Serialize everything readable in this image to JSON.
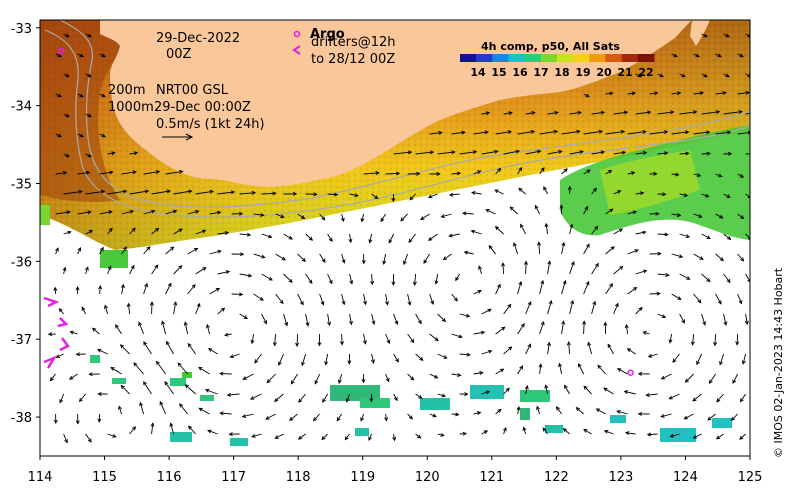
{
  "map": {
    "lon_range": [
      114,
      125
    ],
    "lat_range": [
      -38.5,
      -32.9
    ],
    "x_ticks": [
      "114",
      "115",
      "116",
      "117",
      "118",
      "119",
      "120",
      "121",
      "122",
      "123",
      "124",
      "125"
    ],
    "y_ticks": [
      "-33",
      "-34",
      "-35",
      "-36",
      "-37",
      "-38"
    ],
    "land_color": "#f9c79a",
    "arrow_color": "#000000",
    "argo_color": "#e020e0",
    "contour_color": "#aaaaaa"
  },
  "annotations": {
    "date": "29-Dec-2022",
    "time": "00Z",
    "depth_200": "200m",
    "depth_1000": "1000m",
    "product": "NRT00 GSL",
    "product_time": "29-Dec 00:00Z",
    "scale_label": "0.5m/s (1kt 24h)",
    "argo_title": "Argo",
    "drifters": "drifters@12h",
    "drifters_to": "to 28/12 00Z"
  },
  "colorbar": {
    "title": "4h comp, p50, All Sats",
    "ticks": [
      "14",
      "15",
      "16",
      "17",
      "18",
      "19",
      "20",
      "21",
      "22"
    ],
    "colors": [
      "#141489",
      "#1d3fc0",
      "#1f88d8",
      "#22c1c1",
      "#2fc77a",
      "#7bd630",
      "#c8e41d",
      "#f3d311",
      "#f09a10",
      "#d85a0c",
      "#a6280a",
      "#7a1208"
    ]
  },
  "credit": "© IMOS 02-Jan-2023 14:43 Hobart",
  "argo_floats": [
    {
      "lon": 114.33,
      "lat": -33.3
    },
    {
      "lon": 123.15,
      "lat": -37.43
    }
  ]
}
